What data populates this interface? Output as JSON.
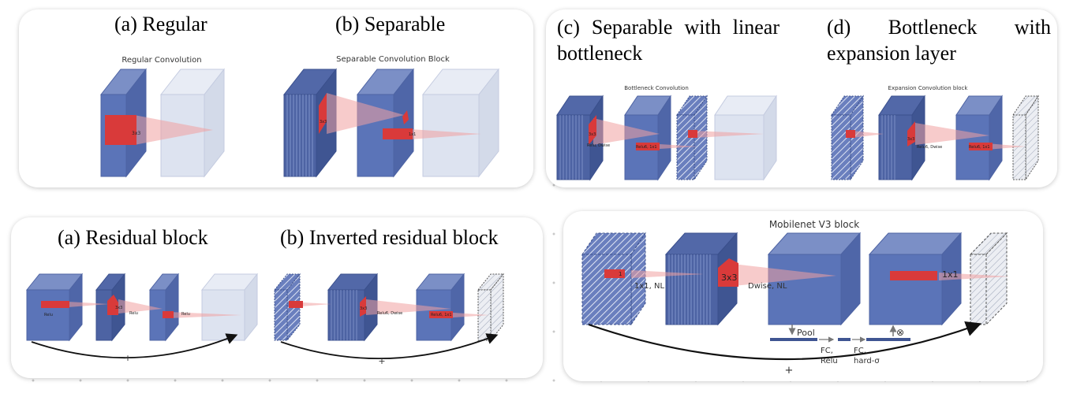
{
  "panel_top_left": {
    "heading_a": "(a) Regular",
    "heading_b": "(b) Separable",
    "caption_regular": "Regular Convolution",
    "caption_separable": "Separable Convolution Block",
    "label_3x3": "3x3",
    "label_1x1": "1x1"
  },
  "panel_top_right": {
    "heading_c": "(c) Separable with linear bottleneck",
    "heading_d": "(d) Bottleneck with expansion layer",
    "caption_bottleneck": "Bottleneck Convolution",
    "caption_expansion": "Expansion Convolution block",
    "label_3x3": "3x3",
    "label_1x1": "1x1",
    "label_relu_dwise": "Relu, Dwise",
    "label_relu_1x1": "Relu6, 1x1",
    "label_relu6_dwise": "Relu6, Dwise",
    "label_relu6_1x1": "Relu6, 1x1"
  },
  "panel_bottom_left": {
    "heading_a": "(a) Residual block",
    "heading_b": "(b) Inverted residual block",
    "label_relu": "Relu",
    "label_3x3": "3x3",
    "label_1x1": "1x1",
    "label_relu6_dwise": "Relu6, Dwise",
    "label_relu6_1x1": "Relu6, 1x1",
    "plus": "+"
  },
  "panel_bottom_right": {
    "title": "Mobilenet V3 block",
    "label_1": "1",
    "label_1x1_nl": "1x1, NL",
    "label_3x3": "3x3",
    "label_dwise_nl": "Dwise, NL",
    "label_1x1": "1x1",
    "label_pool": "Pool",
    "label_fc_1": "FC,",
    "label_relu": "Relu",
    "label_fc_2": "FC,",
    "label_hard_sigma": "hard-σ",
    "label_otimes": "⊗",
    "plus": "+"
  },
  "colors": {
    "block_blue": "#5b74b8",
    "block_dark": "#3f5592",
    "block_ghost": "#dde3f0",
    "kernel_red": "#d93a3a"
  }
}
